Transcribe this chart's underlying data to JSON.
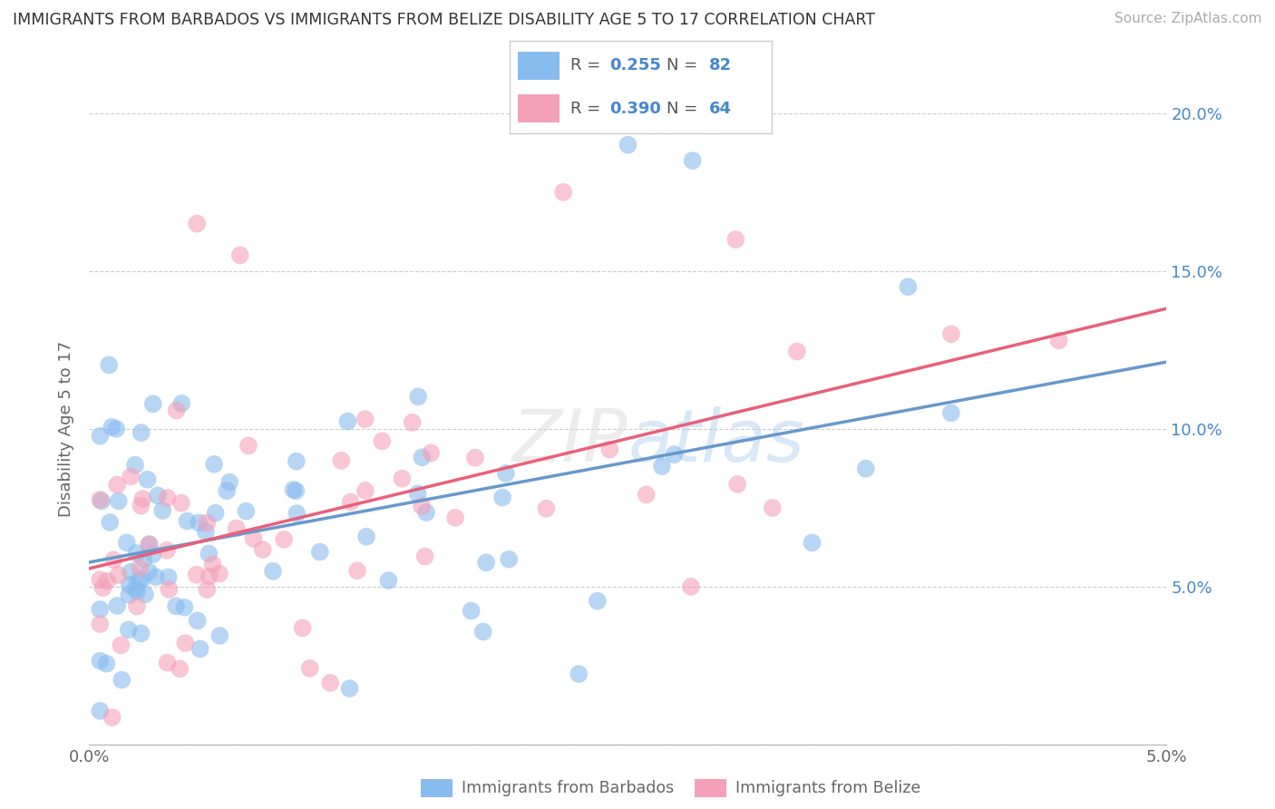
{
  "title": "IMMIGRANTS FROM BARBADOS VS IMMIGRANTS FROM BELIZE DISABILITY AGE 5 TO 17 CORRELATION CHART",
  "source": "Source: ZipAtlas.com",
  "ylabel": "Disability Age 5 to 17",
  "xlim": [
    0.0,
    0.05
  ],
  "ylim": [
    0.0,
    0.2
  ],
  "barbados_color": "#88BBEE",
  "belize_color": "#F4A0B8",
  "barbados_line_color": "#6699CC",
  "belize_line_color": "#E8607A",
  "R_barbados": 0.255,
  "N_barbados": 82,
  "R_belize": 0.39,
  "N_belize": 64,
  "legend_text_color_blue": "#4488CC",
  "legend_text_color_pink": "#CC4466",
  "watermark": "ZIPatlas"
}
